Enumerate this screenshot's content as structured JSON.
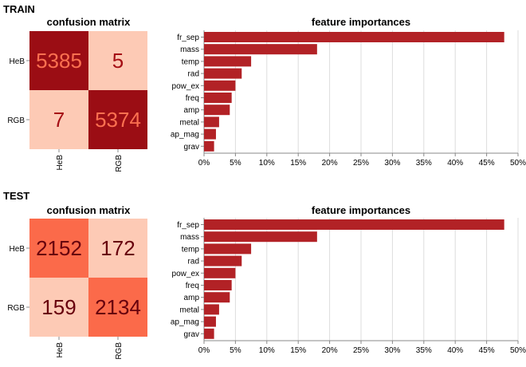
{
  "panels": [
    {
      "section_label": "TRAIN",
      "confusion": {
        "title": "confusion matrix",
        "row_labels": [
          "HeB",
          "RGB"
        ],
        "col_labels": [
          "HeB",
          "RGB"
        ],
        "cells": [
          [
            5385,
            5
          ],
          [
            7,
            5374
          ]
        ],
        "cell_colors": [
          [
            "#9b0d14",
            "#fdcab5"
          ],
          [
            "#fdcab5",
            "#9b0d14"
          ]
        ],
        "text_colors": [
          [
            "#fb7050",
            "#a50f15"
          ],
          [
            "#a50f15",
            "#fb7050"
          ]
        ]
      },
      "importances": {
        "title": "feature importances",
        "features": [
          "fr_sep",
          "mass",
          "temp",
          "rad",
          "pow_ex",
          "freq",
          "amp",
          "metal",
          "ap_mag",
          "grav"
        ],
        "values": [
          47.8,
          18.0,
          7.5,
          6.0,
          5.0,
          4.4,
          4.1,
          2.4,
          1.9,
          1.6
        ],
        "x_ticks": [
          "0%",
          "5%",
          "10%",
          "15%",
          "20%",
          "25%",
          "30%",
          "35%",
          "40%",
          "45%",
          "50%"
        ],
        "xlim": [
          0,
          50
        ],
        "bar_color": "#b22226"
      }
    },
    {
      "section_label": "TEST",
      "confusion": {
        "title": "confusion matrix",
        "row_labels": [
          "HeB",
          "RGB"
        ],
        "col_labels": [
          "HeB",
          "RGB"
        ],
        "cells": [
          [
            2152,
            172
          ],
          [
            159,
            2134
          ]
        ],
        "cell_colors": [
          [
            "#fb6a4a",
            "#fdcab5"
          ],
          [
            "#fdcab5",
            "#fb6a4a"
          ]
        ],
        "text_colors": [
          [
            "#67000d",
            "#67000d"
          ],
          [
            "#67000d",
            "#67000d"
          ]
        ]
      },
      "importances": {
        "title": "feature importances",
        "features": [
          "fr_sep",
          "mass",
          "temp",
          "rad",
          "pow_ex",
          "freq",
          "amp",
          "metal",
          "ap_mag",
          "grav"
        ],
        "values": [
          47.8,
          18.0,
          7.5,
          6.0,
          5.0,
          4.4,
          4.1,
          2.4,
          1.9,
          1.6
        ],
        "x_ticks": [
          "0%",
          "5%",
          "10%",
          "15%",
          "20%",
          "25%",
          "30%",
          "35%",
          "40%",
          "45%",
          "50%"
        ],
        "xlim": [
          0,
          50
        ],
        "bar_color": "#b22226"
      }
    }
  ],
  "chart_data": [
    {
      "type": "heatmap",
      "title": "confusion matrix",
      "group": "TRAIN",
      "x": [
        "HeB",
        "RGB"
      ],
      "y": [
        "HeB",
        "RGB"
      ],
      "values": [
        [
          5385,
          5
        ],
        [
          7,
          5374
        ]
      ]
    },
    {
      "type": "bar",
      "title": "feature importances",
      "group": "TRAIN",
      "orientation": "horizontal",
      "categories": [
        "fr_sep",
        "mass",
        "temp",
        "rad",
        "pow_ex",
        "freq",
        "amp",
        "metal",
        "ap_mag",
        "grav"
      ],
      "values": [
        47.8,
        18.0,
        7.5,
        6.0,
        5.0,
        4.4,
        4.1,
        2.4,
        1.9,
        1.6
      ],
      "xlim": [
        0,
        50
      ],
      "grid": true
    },
    {
      "type": "heatmap",
      "title": "confusion matrix",
      "group": "TEST",
      "x": [
        "HeB",
        "RGB"
      ],
      "y": [
        "HeB",
        "RGB"
      ],
      "values": [
        [
          2152,
          172
        ],
        [
          159,
          2134
        ]
      ]
    },
    {
      "type": "bar",
      "title": "feature importances",
      "group": "TEST",
      "orientation": "horizontal",
      "categories": [
        "fr_sep",
        "mass",
        "temp",
        "rad",
        "pow_ex",
        "freq",
        "amp",
        "metal",
        "ap_mag",
        "grav"
      ],
      "values": [
        47.8,
        18.0,
        7.5,
        6.0,
        5.0,
        4.4,
        4.1,
        2.4,
        1.9,
        1.6
      ],
      "xlim": [
        0,
        50
      ],
      "grid": true
    }
  ]
}
